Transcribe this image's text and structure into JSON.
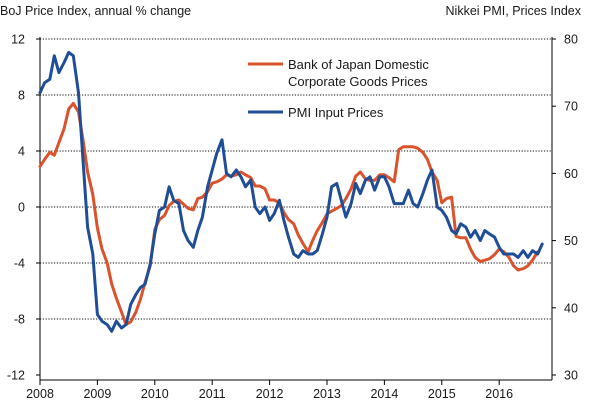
{
  "chart_data": {
    "type": "line",
    "left_axis_label": "BoJ Price Index, annual % change",
    "right_axis_label": "Nikkei PMI, Prices Index",
    "left_ylim": [
      -12,
      12
    ],
    "left_ticks": [
      12,
      8,
      4,
      0,
      -4,
      -8,
      -12
    ],
    "right_ylim": [
      30,
      80
    ],
    "right_ticks": [
      80,
      70,
      60,
      50,
      40,
      30
    ],
    "xlim": [
      2008,
      2016.92
    ],
    "x_ticks": [
      2008,
      2009,
      2010,
      2011,
      2012,
      2013,
      2014,
      2015,
      2016
    ],
    "grid": true,
    "legend_position": "top-center",
    "series": [
      {
        "name": "Bank of Japan Domestic Corporate Goods Prices",
        "axis": "left",
        "color": "#d9532c",
        "points": [
          [
            2008.0,
            2.9
          ],
          [
            2008.08,
            3.4
          ],
          [
            2008.17,
            3.9
          ],
          [
            2008.25,
            3.7
          ],
          [
            2008.33,
            4.6
          ],
          [
            2008.42,
            5.6
          ],
          [
            2008.5,
            7.0
          ],
          [
            2008.58,
            7.4
          ],
          [
            2008.67,
            6.8
          ],
          [
            2008.75,
            4.8
          ],
          [
            2008.83,
            2.5
          ],
          [
            2008.92,
            0.9
          ],
          [
            2009.0,
            -1.5
          ],
          [
            2009.08,
            -3.0
          ],
          [
            2009.17,
            -4.0
          ],
          [
            2009.25,
            -5.5
          ],
          [
            2009.33,
            -6.5
          ],
          [
            2009.42,
            -7.5
          ],
          [
            2009.5,
            -8.4
          ],
          [
            2009.58,
            -8.2
          ],
          [
            2009.67,
            -7.5
          ],
          [
            2009.75,
            -6.6
          ],
          [
            2009.83,
            -5.4
          ],
          [
            2009.92,
            -4.2
          ],
          [
            2010.0,
            -1.6
          ],
          [
            2010.08,
            -0.9
          ],
          [
            2010.17,
            -0.6
          ],
          [
            2010.25,
            0.1
          ],
          [
            2010.33,
            0.4
          ],
          [
            2010.42,
            0.5
          ],
          [
            2010.5,
            0.2
          ],
          [
            2010.58,
            -0.1
          ],
          [
            2010.67,
            -0.2
          ],
          [
            2010.75,
            0.6
          ],
          [
            2010.83,
            0.7
          ],
          [
            2010.92,
            1.1
          ],
          [
            2011.0,
            1.7
          ],
          [
            2011.08,
            1.8
          ],
          [
            2011.17,
            2.0
          ],
          [
            2011.25,
            2.3
          ],
          [
            2011.33,
            2.2
          ],
          [
            2011.42,
            2.3
          ],
          [
            2011.5,
            2.5
          ],
          [
            2011.58,
            2.3
          ],
          [
            2011.67,
            2.1
          ],
          [
            2011.75,
            1.5
          ],
          [
            2011.83,
            1.5
          ],
          [
            2011.92,
            1.3
          ],
          [
            2012.0,
            0.5
          ],
          [
            2012.08,
            0.5
          ],
          [
            2012.17,
            0.3
          ],
          [
            2012.25,
            -0.4
          ],
          [
            2012.33,
            -0.9
          ],
          [
            2012.42,
            -1.2
          ],
          [
            2012.5,
            -2.0
          ],
          [
            2012.58,
            -2.6
          ],
          [
            2012.67,
            -3.2
          ],
          [
            2012.75,
            -2.4
          ],
          [
            2012.83,
            -1.7
          ],
          [
            2012.92,
            -1.1
          ],
          [
            2013.0,
            -0.5
          ],
          [
            2013.08,
            -0.3
          ],
          [
            2013.17,
            -0.1
          ],
          [
            2013.25,
            0.1
          ],
          [
            2013.33,
            0.6
          ],
          [
            2013.42,
            1.3
          ],
          [
            2013.5,
            2.2
          ],
          [
            2013.58,
            2.5
          ],
          [
            2013.67,
            2.0
          ],
          [
            2013.75,
            1.9
          ],
          [
            2013.83,
            1.9
          ],
          [
            2013.92,
            2.3
          ],
          [
            2014.0,
            2.3
          ],
          [
            2014.08,
            2.1
          ],
          [
            2014.17,
            1.8
          ],
          [
            2014.25,
            4.1
          ],
          [
            2014.33,
            4.3
          ],
          [
            2014.42,
            4.3
          ],
          [
            2014.5,
            4.3
          ],
          [
            2014.58,
            4.2
          ],
          [
            2014.67,
            3.9
          ],
          [
            2014.75,
            3.4
          ],
          [
            2014.83,
            2.5
          ],
          [
            2014.92,
            1.9
          ],
          [
            2015.0,
            0.3
          ],
          [
            2015.08,
            0.6
          ],
          [
            2015.17,
            0.7
          ],
          [
            2015.25,
            -2.1
          ],
          [
            2015.33,
            -2.2
          ],
          [
            2015.42,
            -2.2
          ],
          [
            2015.5,
            -3.0
          ],
          [
            2015.58,
            -3.6
          ],
          [
            2015.67,
            -3.9
          ],
          [
            2015.75,
            -3.8
          ],
          [
            2015.83,
            -3.7
          ],
          [
            2015.92,
            -3.4
          ],
          [
            2016.0,
            -3.0
          ],
          [
            2016.08,
            -3.2
          ],
          [
            2016.17,
            -3.6
          ],
          [
            2016.25,
            -4.2
          ],
          [
            2016.33,
            -4.5
          ],
          [
            2016.42,
            -4.4
          ],
          [
            2016.5,
            -4.2
          ],
          [
            2016.58,
            -3.8
          ],
          [
            2016.67,
            -3.2
          ]
        ]
      },
      {
        "name": "PMI Input Prices",
        "axis": "right",
        "color": "#1f4e96",
        "points": [
          [
            2008.0,
            72.0
          ],
          [
            2008.08,
            73.5
          ],
          [
            2008.17,
            74.0
          ],
          [
            2008.25,
            77.5
          ],
          [
            2008.33,
            75.0
          ],
          [
            2008.42,
            76.5
          ],
          [
            2008.5,
            78.0
          ],
          [
            2008.58,
            77.5
          ],
          [
            2008.67,
            72.0
          ],
          [
            2008.75,
            62.0
          ],
          [
            2008.83,
            52.0
          ],
          [
            2008.92,
            48.0
          ],
          [
            2009.0,
            39.0
          ],
          [
            2009.08,
            38.0
          ],
          [
            2009.17,
            37.5
          ],
          [
            2009.25,
            36.5
          ],
          [
            2009.33,
            38.0
          ],
          [
            2009.42,
            37.0
          ],
          [
            2009.5,
            37.5
          ],
          [
            2009.58,
            40.5
          ],
          [
            2009.67,
            42.0
          ],
          [
            2009.75,
            43.0
          ],
          [
            2009.83,
            43.5
          ],
          [
            2009.92,
            46.5
          ],
          [
            2010.0,
            51.0
          ],
          [
            2010.08,
            54.5
          ],
          [
            2010.17,
            55.0
          ],
          [
            2010.25,
            58.0
          ],
          [
            2010.33,
            56.0
          ],
          [
            2010.42,
            55.5
          ],
          [
            2010.5,
            51.5
          ],
          [
            2010.58,
            50.0
          ],
          [
            2010.67,
            49.0
          ],
          [
            2010.75,
            51.5
          ],
          [
            2010.83,
            53.5
          ],
          [
            2010.92,
            58.0
          ],
          [
            2011.0,
            60.5
          ],
          [
            2011.08,
            63.0
          ],
          [
            2011.17,
            65.0
          ],
          [
            2011.25,
            60.0
          ],
          [
            2011.33,
            59.5
          ],
          [
            2011.42,
            60.5
          ],
          [
            2011.5,
            59.5
          ],
          [
            2011.58,
            58.0
          ],
          [
            2011.67,
            59.0
          ],
          [
            2011.75,
            55.0
          ],
          [
            2011.83,
            54.0
          ],
          [
            2011.92,
            55.0
          ],
          [
            2012.0,
            53.0
          ],
          [
            2012.08,
            54.0
          ],
          [
            2012.17,
            56.0
          ],
          [
            2012.25,
            53.0
          ],
          [
            2012.33,
            50.5
          ],
          [
            2012.42,
            48.0
          ],
          [
            2012.5,
            47.5
          ],
          [
            2012.58,
            48.5
          ],
          [
            2012.67,
            48.0
          ],
          [
            2012.75,
            48.0
          ],
          [
            2012.83,
            48.5
          ],
          [
            2012.92,
            51.0
          ],
          [
            2013.0,
            53.5
          ],
          [
            2013.08,
            58.0
          ],
          [
            2013.17,
            58.5
          ],
          [
            2013.25,
            56.0
          ],
          [
            2013.33,
            53.5
          ],
          [
            2013.42,
            55.5
          ],
          [
            2013.5,
            58.5
          ],
          [
            2013.58,
            57.0
          ],
          [
            2013.67,
            59.0
          ],
          [
            2013.75,
            59.5
          ],
          [
            2013.83,
            57.5
          ],
          [
            2013.92,
            59.5
          ],
          [
            2014.0,
            59.5
          ],
          [
            2014.08,
            58.0
          ],
          [
            2014.17,
            55.5
          ],
          [
            2014.25,
            55.5
          ],
          [
            2014.33,
            55.5
          ],
          [
            2014.42,
            57.5
          ],
          [
            2014.5,
            55.5
          ],
          [
            2014.58,
            55.0
          ],
          [
            2014.67,
            57.0
          ],
          [
            2014.75,
            59.0
          ],
          [
            2014.83,
            60.5
          ],
          [
            2014.92,
            55.0
          ],
          [
            2015.0,
            54.5
          ],
          [
            2015.08,
            53.5
          ],
          [
            2015.17,
            51.5
          ],
          [
            2015.25,
            51.0
          ],
          [
            2015.33,
            52.5
          ],
          [
            2015.42,
            52.0
          ],
          [
            2015.5,
            50.5
          ],
          [
            2015.58,
            51.5
          ],
          [
            2015.67,
            50.0
          ],
          [
            2015.75,
            51.5
          ],
          [
            2015.83,
            51.0
          ],
          [
            2015.92,
            50.5
          ],
          [
            2016.0,
            49.0
          ],
          [
            2016.08,
            48.0
          ],
          [
            2016.17,
            48.0
          ],
          [
            2016.25,
            48.0
          ],
          [
            2016.33,
            47.5
          ],
          [
            2016.42,
            48.5
          ],
          [
            2016.5,
            47.5
          ],
          [
            2016.58,
            48.5
          ],
          [
            2016.67,
            48.0
          ],
          [
            2016.75,
            49.5
          ]
        ]
      }
    ]
  }
}
